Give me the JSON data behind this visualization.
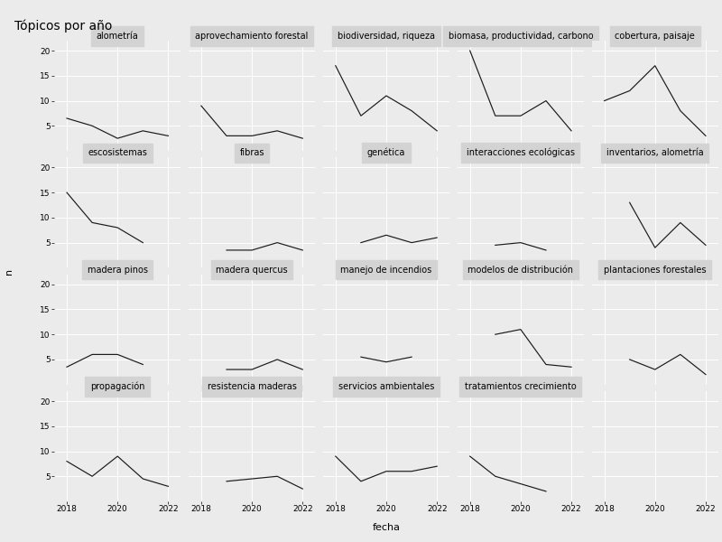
{
  "title": "Tópicos por año",
  "xlabel": "fecha",
  "ylabel": "n",
  "years": [
    2018,
    2019,
    2020,
    2021,
    2022
  ],
  "subplots": [
    {
      "title": "alometría",
      "values": [
        6.5,
        5.0,
        2.5,
        4.0,
        3.0
      ]
    },
    {
      "title": "aprovechamiento forestal",
      "values": [
        9.0,
        3.0,
        3.0,
        4.0,
        2.5
      ]
    },
    {
      "title": "biodiversidad, riqueza",
      "values": [
        17.0,
        7.0,
        11.0,
        8.0,
        4.0
      ]
    },
    {
      "title": "biomasa, productividad, carbono",
      "values": [
        20.0,
        7.0,
        7.0,
        10.0,
        4.0
      ]
    },
    {
      "title": "cobertura, paisaje",
      "values": [
        10.0,
        12.0,
        17.0,
        8.0,
        3.0
      ]
    },
    {
      "title": "escosistemas",
      "values": [
        15.0,
        9.0,
        8.0,
        5.0,
        null
      ]
    },
    {
      "title": "fibras",
      "values": [
        null,
        3.5,
        3.5,
        5.0,
        3.5
      ]
    },
    {
      "title": "genética",
      "values": [
        null,
        5.0,
        6.5,
        5.0,
        6.0
      ]
    },
    {
      "title": "interacciones ecológicas",
      "values": [
        null,
        4.5,
        5.0,
        3.5,
        null
      ]
    },
    {
      "title": "inventarios, alometría",
      "values": [
        null,
        13.0,
        4.0,
        9.0,
        4.5
      ]
    },
    {
      "title": "madera pinos",
      "values": [
        3.5,
        6.0,
        6.0,
        4.0,
        null
      ]
    },
    {
      "title": "madera quercus",
      "values": [
        null,
        3.0,
        3.0,
        5.0,
        3.0
      ]
    },
    {
      "title": "manejo de incendios",
      "values": [
        null,
        5.5,
        4.5,
        5.5,
        null
      ]
    },
    {
      "title": "modelos de distribución",
      "values": [
        null,
        10.0,
        11.0,
        4.0,
        3.5
      ]
    },
    {
      "title": "plantaciones forestales",
      "values": [
        null,
        5.0,
        3.0,
        6.0,
        2.0
      ]
    },
    {
      "title": "propagación",
      "values": [
        8.0,
        5.0,
        9.0,
        4.5,
        3.0
      ]
    },
    {
      "title": "resistencia maderas",
      "values": [
        null,
        4.0,
        4.5,
        5.0,
        2.5
      ]
    },
    {
      "title": "servicios ambientales",
      "values": [
        9.0,
        4.0,
        6.0,
        6.0,
        7.0
      ]
    },
    {
      "title": "tratamientos crecimiento",
      "values": [
        9.0,
        5.0,
        3.5,
        2.0,
        null
      ]
    }
  ],
  "nrows": 4,
  "ncols": 5,
  "background_color": "#EBEBEB",
  "panel_color": "#EBEBEB",
  "strip_color": "#D3D3D3",
  "line_color": "#1a1a1a",
  "grid_color": "#ffffff",
  "ylim": [
    0,
    22
  ],
  "yticks": [
    5,
    10,
    15,
    20
  ],
  "title_fontsize": 10,
  "axis_label_fontsize": 8,
  "strip_fontsize": 7,
  "tick_fontsize": 6.5
}
